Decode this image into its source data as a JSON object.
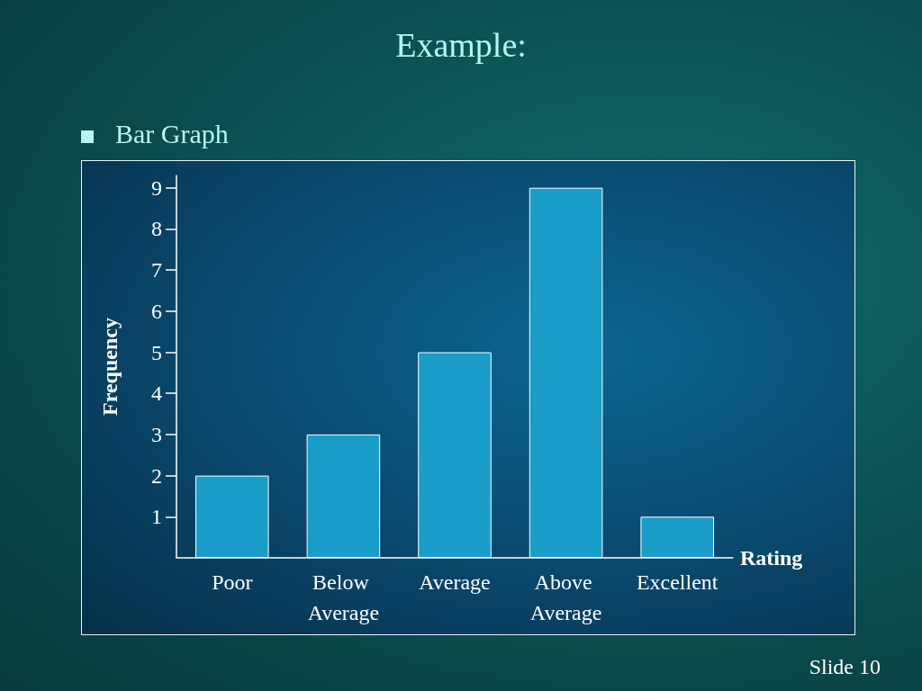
{
  "chart_data": {
    "type": "bar",
    "title": "Example:",
    "subtitle": "Bar Graph",
    "xlabel": "Rating",
    "ylabel": "Frequency",
    "categories": [
      "Poor",
      "Below Average",
      "Average",
      "Above Average",
      "Excellent"
    ],
    "values": [
      2,
      3,
      5,
      9,
      1
    ],
    "color": "#1a9cc8",
    "ylim": [
      0,
      9.3
    ],
    "yticks": [
      1,
      2,
      3,
      4,
      5,
      6,
      7,
      8,
      9
    ],
    "grid": false,
    "annotations": [
      "Slide 10"
    ]
  }
}
